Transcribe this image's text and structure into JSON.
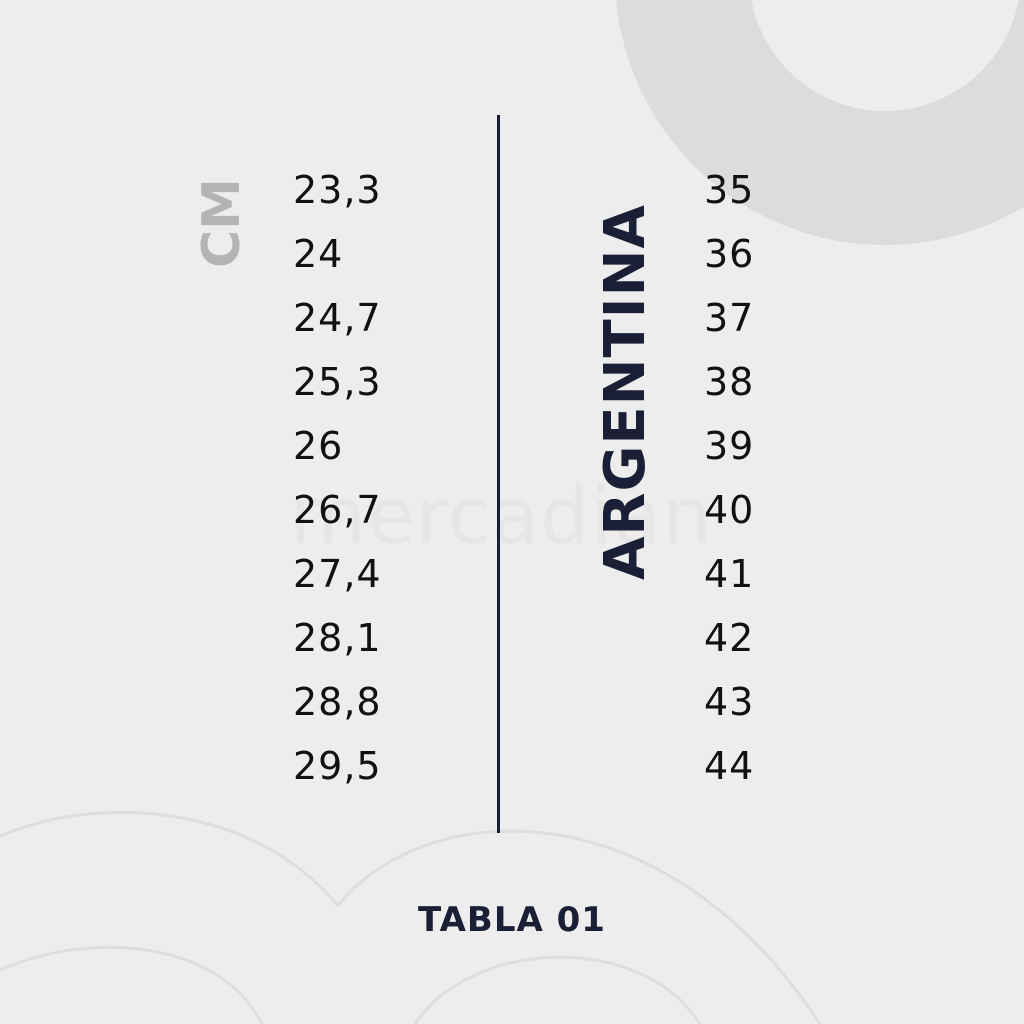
{
  "header": {
    "cm_label": "CM",
    "country_label": "ARGENTINA"
  },
  "watermark": "mercadian",
  "columns": {
    "cm": [
      "23,3",
      "24",
      "24,7",
      "25,3",
      "26",
      "26,7",
      "27,4",
      "28,1",
      "28,8",
      "29,5"
    ],
    "argentina": [
      "35",
      "36",
      "37",
      "38",
      "39",
      "40",
      "41",
      "42",
      "43",
      "44"
    ]
  },
  "footer": {
    "label": "TABLA 01"
  },
  "colors": {
    "background": "#ededed",
    "navy": "#1b1f36",
    "gray_label": "#b4b4b7",
    "decor_gray": "#dcdcde"
  }
}
